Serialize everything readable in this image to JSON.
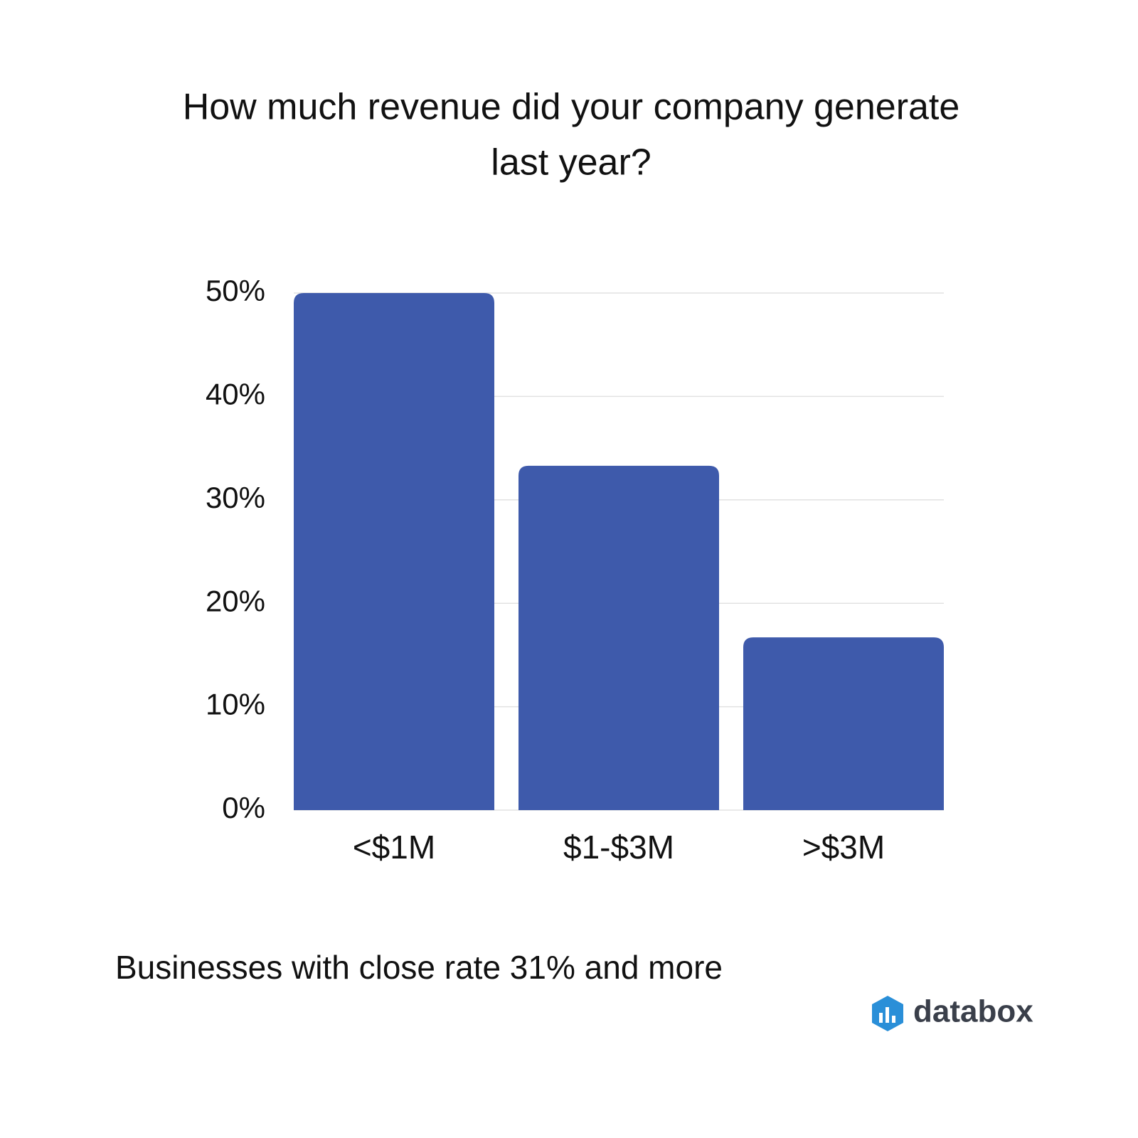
{
  "chart_data": {
    "type": "bar",
    "title": [
      "How much revenue did your company generate",
      "last year?"
    ],
    "categories": [
      "<$1M",
      "$1-$3M",
      ">$3M"
    ],
    "values": [
      50,
      33.3,
      16.7
    ],
    "color": "#3e5aab",
    "ylim": [
      0,
      50
    ],
    "yticks": [
      {
        "value": 0,
        "label": "0%"
      },
      {
        "value": 10,
        "label": "10%"
      },
      {
        "value": 20,
        "label": "20%"
      },
      {
        "value": 30,
        "label": "30%"
      },
      {
        "value": 40,
        "label": "40%"
      },
      {
        "value": 50,
        "label": "50%"
      }
    ],
    "grid": true,
    "annotation": "Businesses with close rate 31% and more",
    "brand": "databox"
  }
}
